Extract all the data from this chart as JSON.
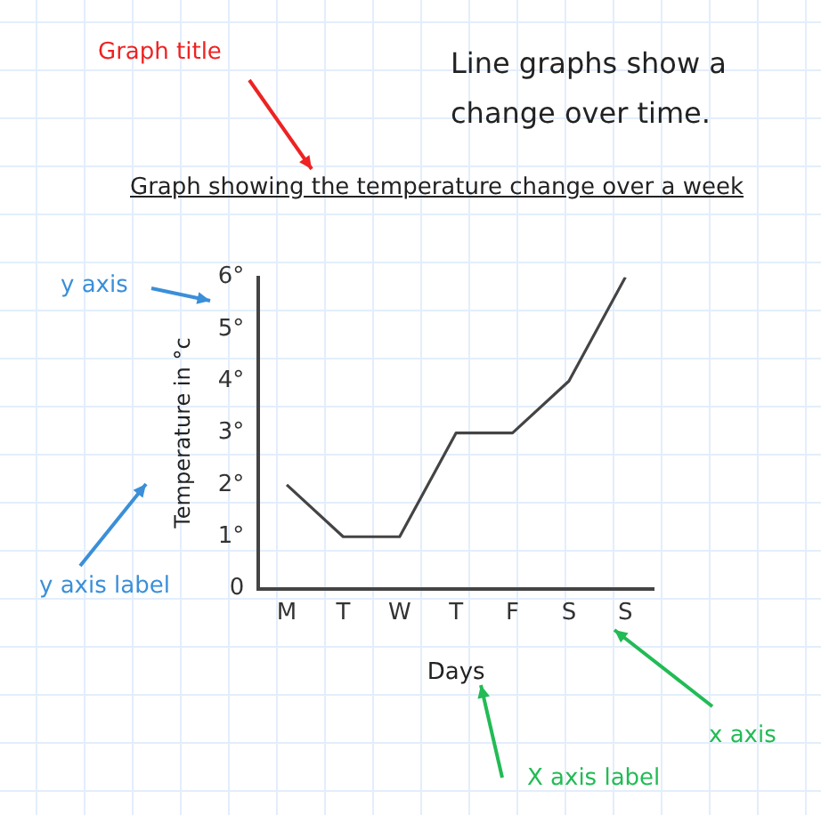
{
  "chart_data": {
    "type": "line",
    "title": "Graph showing the temperature change over a week",
    "subtitle": "Line graphs show a change over time.",
    "xlabel": "Days",
    "ylabel": "Temperature in °c",
    "categories": [
      "M",
      "T",
      "W",
      "T",
      "F",
      "S",
      "S"
    ],
    "series": [
      {
        "color": "#444444",
        "values": [
          2,
          1,
          1,
          3,
          3,
          4,
          6
        ]
      }
    ],
    "ylim": [
      0,
      6
    ],
    "yticks": [
      {
        "value": 0,
        "label": "0"
      },
      {
        "value": 1,
        "label": "1°"
      },
      {
        "value": 2,
        "label": "2°"
      },
      {
        "value": 3,
        "label": "3°"
      },
      {
        "value": 4,
        "label": "4°"
      },
      {
        "value": 5,
        "label": "5°"
      },
      {
        "value": 6,
        "label": "6°"
      }
    ],
    "grid": false,
    "legend": false,
    "marker": "none",
    "line_style": "solid",
    "annotations": [
      "Graph title",
      "y axis",
      "y axis label",
      "x axis",
      "X axis label"
    ]
  }
}
